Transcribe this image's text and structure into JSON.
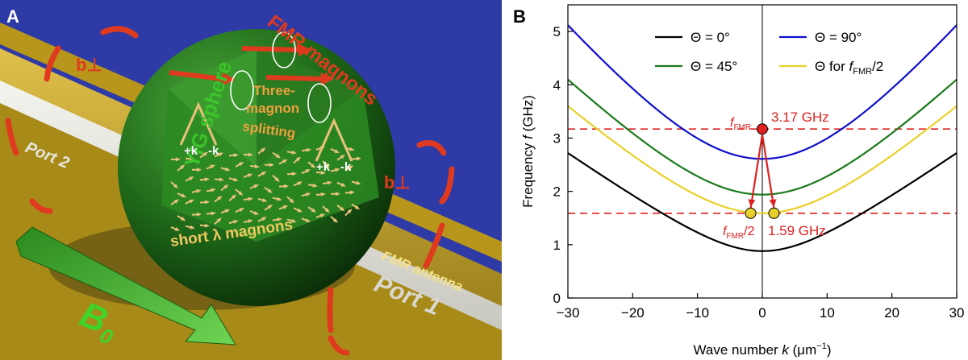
{
  "panel_a": {
    "letter": "A",
    "labels": {
      "yig_sphere": "YIG sphere",
      "fmr_magnons": "FMR magnons",
      "three_magnon_1": "Three-",
      "three_magnon_2": "magnon",
      "three_magnon_3": "splitting",
      "short_magnons": "short λ magnons",
      "plus_k_left": "+k",
      "minus_k_left": "-k",
      "plus_k_right": "+k",
      "minus_k_right": "-k",
      "b_perp_top": "b⊥",
      "b_perp_right": "b⊥",
      "port2": "Port 2",
      "port1": "Port 1",
      "fmr_antenna": "FMR antenna",
      "b0_main": "B",
      "b0_sub": "0"
    },
    "colors": {
      "substrate": "#2e3aa6",
      "gold": "#c9a628",
      "sphere": "#1f6b1a",
      "arrow_red": "#e03a1e",
      "arrow_green": "#3fae2c",
      "arrow_tan": "#e8c27a"
    }
  },
  "panel_b": {
    "letter": "B",
    "chart_data": {
      "type": "line",
      "xlabel_pre": "Wave number ",
      "xlabel_var": "k",
      "xlabel_post": " (μm",
      "xlabel_sup": "−1",
      "xlabel_end": ")",
      "ylabel_pre": "Frequency ",
      "ylabel_var": "f",
      "ylabel_post": " (GHz)",
      "xlim": [
        -30,
        30
      ],
      "ylim": [
        0,
        5.5
      ],
      "xticks": [
        -30,
        -20,
        -10,
        0,
        10,
        20,
        30
      ],
      "yticks": [
        0,
        1,
        2,
        3,
        4,
        5
      ],
      "xtick_labels": [
        "−30",
        "−20",
        "−10",
        "0",
        "10",
        "20",
        "30"
      ],
      "ytick_labels": [
        "0",
        "1",
        "2",
        "3",
        "4",
        "5"
      ],
      "series": [
        {
          "name": "Θ = 0°",
          "color": "#000000",
          "f0": 0.88,
          "f30": 2.72
        },
        {
          "name": "Θ = 90°",
          "color": "#1010cc",
          "f0": 2.61,
          "f30": 5.12
        },
        {
          "name": "Θ = 45°",
          "color": "#1a7a1a",
          "f0": 1.94,
          "f30": 4.1
        },
        {
          "name_pre": "Θ for ",
          "name_var": "f",
          "name_sub": "FMR",
          "name_post": "/2",
          "color": "#e8d02a",
          "f0": 1.59,
          "f30": 3.6
        }
      ],
      "hlines": [
        3.17,
        1.59
      ],
      "points": {
        "fmr": {
          "k": 0,
          "f": 3.17,
          "color": "#e02020"
        },
        "half_left": {
          "k": -1.8,
          "f": 1.59,
          "color": "#e8d02a"
        },
        "half_right": {
          "k": 1.8,
          "f": 1.59,
          "color": "#e8d02a"
        }
      },
      "annotations": {
        "fmr_var": "f",
        "fmr_sub": "FMR",
        "fmr_value": "3.17 GHz",
        "half_var": "f",
        "half_sub": "FMR",
        "half_post": "/2",
        "half_value": "1.59 GHz",
        "color": "#e02020"
      }
    }
  }
}
